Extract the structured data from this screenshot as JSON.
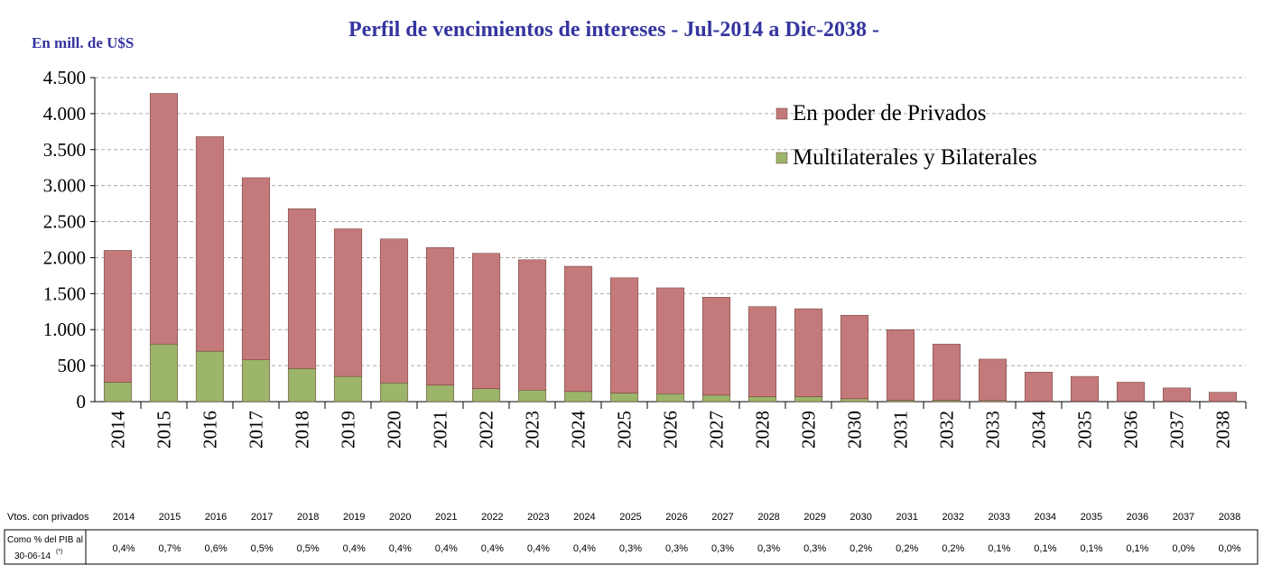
{
  "chart_data": {
    "type": "stacked_bar",
    "title": "Perfil de vencimientos de intereses - Jul-2014 a Dic-2038 -",
    "y_label": "En mill. de U$S",
    "categories": [
      "2014",
      "2015",
      "2016",
      "2017",
      "2018",
      "2019",
      "2020",
      "2021",
      "2022",
      "2023",
      "2024",
      "2025",
      "2026",
      "2027",
      "2028",
      "2029",
      "2030",
      "2031",
      "2032",
      "2033",
      "2034",
      "2035",
      "2036",
      "2037",
      "2038"
    ],
    "series": [
      {
        "name": "En poder de Privados",
        "color": "#c47a7a",
        "values": [
          1830,
          3480,
          2980,
          2530,
          2220,
          2050,
          2000,
          1910,
          1880,
          1810,
          1740,
          1600,
          1470,
          1360,
          1250,
          1220,
          1160,
          980,
          780,
          575,
          405,
          345,
          265,
          185,
          128
        ]
      },
      {
        "name": "Multilaterales y Bilaterales",
        "color": "#9cb56a",
        "values": [
          270,
          800,
          700,
          580,
          460,
          350,
          260,
          230,
          180,
          160,
          140,
          120,
          110,
          90,
          70,
          70,
          40,
          20,
          20,
          15,
          5,
          5,
          5,
          5,
          2
        ]
      }
    ],
    "ylim": [
      0,
      4500
    ],
    "yticks": [
      0,
      500,
      {
        "value": 1000,
        "label": "1.000"
      },
      {
        "value": 1500,
        "label": "1.500"
      },
      {
        "value": 2000,
        "label": "2.000"
      },
      {
        "value": 2500,
        "label": "2.500"
      },
      {
        "value": 3000,
        "label": "3.000"
      },
      {
        "value": 3500,
        "label": "3.500"
      },
      {
        "value": 4000,
        "label": "4.000"
      },
      {
        "value": 4500,
        "label": "4.500"
      }
    ],
    "grid": true,
    "legend": "top-right"
  },
  "table": {
    "header": "Vtos. con privados",
    "row_label": [
      "Como % del PIB al",
      "30-06-14"
    ],
    "note": "(*)",
    "values": [
      "0,4%",
      "0,7%",
      "0,6%",
      "0,5%",
      "0,5%",
      "0,4%",
      "0,4%",
      "0,4%",
      "0,4%",
      "0,4%",
      "0,4%",
      "0,3%",
      "0,3%",
      "0,3%",
      "0,3%",
      "0,3%",
      "0,2%",
      "0,2%",
      "0,2%",
      "0,1%",
      "0,1%",
      "0,1%",
      "0,1%",
      "0,0%",
      "0,0%"
    ]
  }
}
